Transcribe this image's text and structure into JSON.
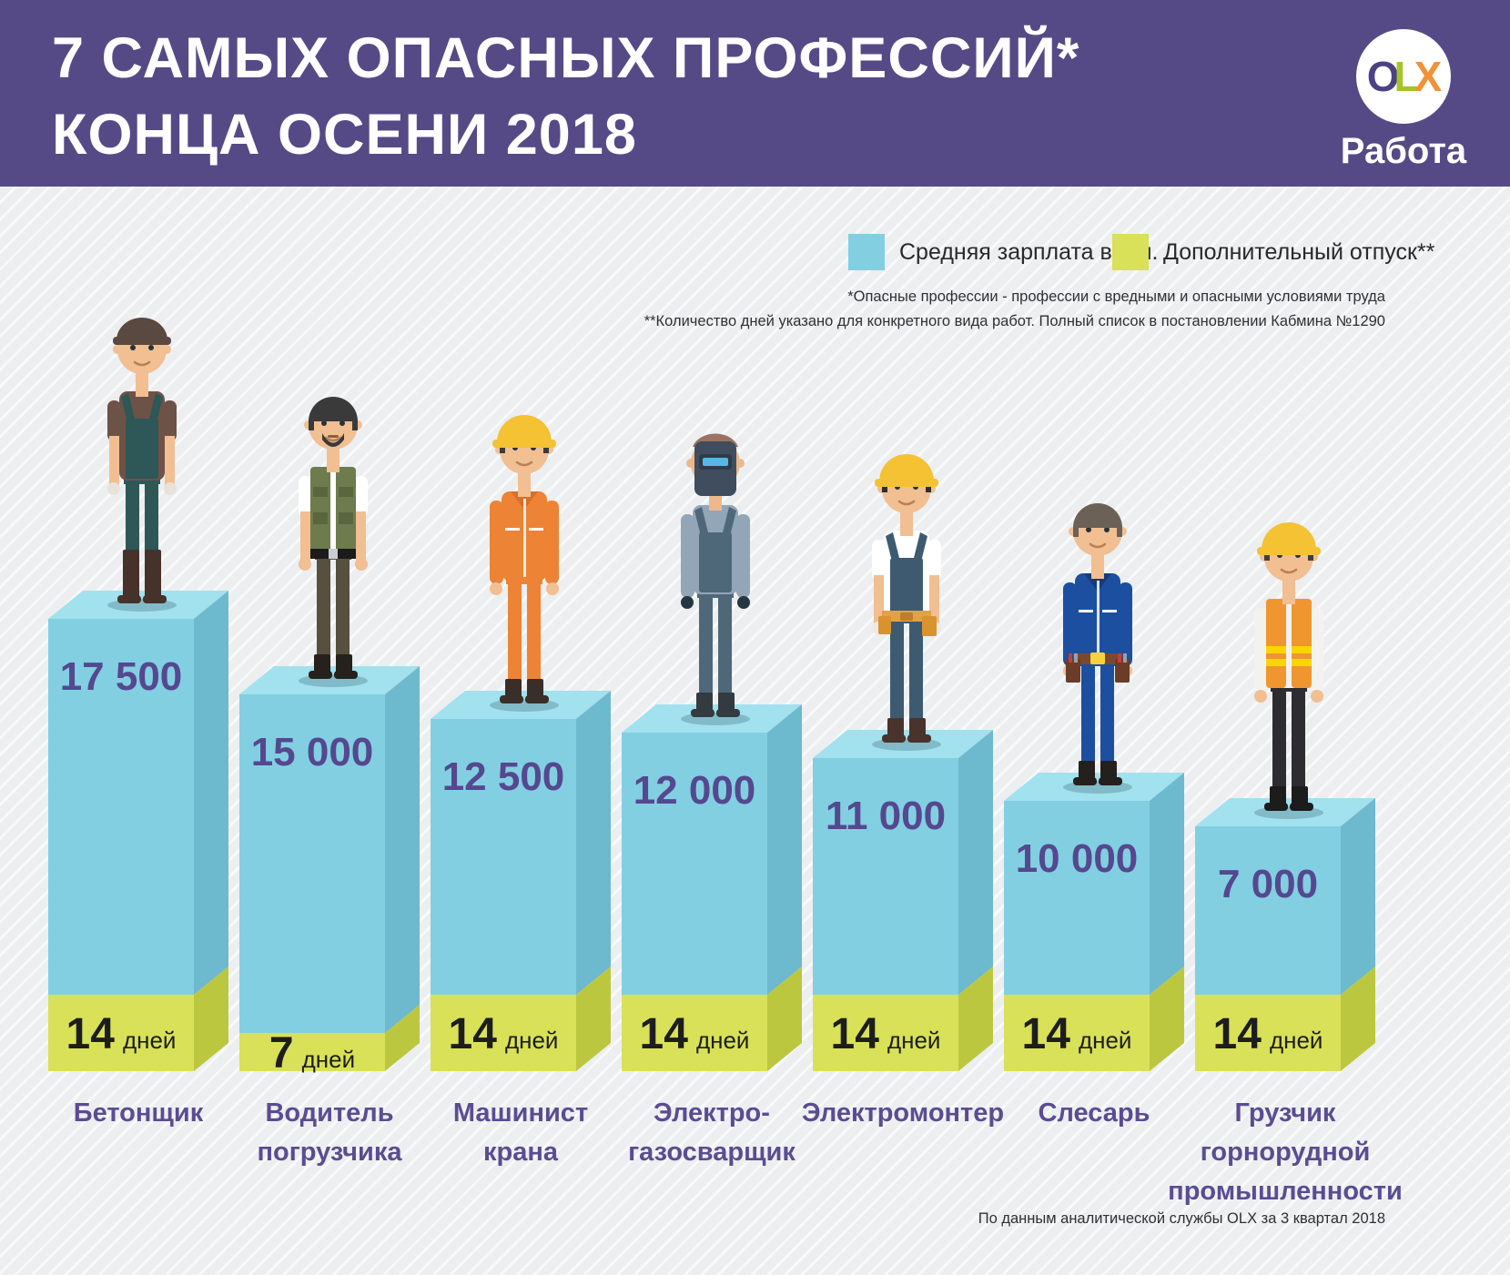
{
  "header": {
    "title_line1": "7 САМЫХ ОПАСНЫХ ПРОФЕССИЙ*",
    "title_line2": "КОНЦА ОСЕНИ 2018",
    "logo": {
      "o": "O",
      "l": "L",
      "x": "X",
      "product": "Работа"
    }
  },
  "legend": [
    {
      "label": "Средняя зарплата в грн.",
      "color": "#82cfe2"
    },
    {
      "label": "Дополнительный отпуск**",
      "color": "#d8e158"
    }
  ],
  "footnotes": [
    "*Опасные профессии - профессии с вредными и опасными условиями труда",
    "**Количество дней указано для конкретного вида работ. Полный список в постановлении Кабмина №1290"
  ],
  "source": "По данным аналитической службы OLX за 3 квартал 2018",
  "days_word": "дней",
  "chart_data": {
    "type": "bar",
    "categories": [
      "Бетонщик",
      "Водитель погрузчика",
      "Машинист крана",
      "Электро-газосварщик",
      "Электромонтер",
      "Слесарь",
      "Грузчик горнорудной промышленности"
    ],
    "series": [
      {
        "name": "Средняя зарплата в грн.",
        "values": [
          17500,
          15000,
          12500,
          12000,
          11000,
          10000,
          7000
        ]
      },
      {
        "name": "Дополнительный отпуск, дней",
        "values": [
          14,
          7,
          14,
          14,
          14,
          14,
          14
        ]
      }
    ],
    "title": "7 самых опасных профессий конца осени 2018",
    "legend_position": "top-right",
    "grid": false
  },
  "colors": {
    "bar_front_blue": "#82cfe2",
    "bar_side_blue": "#6db9cd",
    "bar_top_blue": "#a2e1ee",
    "bar_front_green": "#d8e158",
    "bar_side_green": "#bcc740",
    "value_text": "#55488f",
    "days_text": "#1d1d1d",
    "label_text": "#5b4c92",
    "header_bg": "#564a86"
  },
  "bars": [
    {
      "id": "concrete-worker",
      "value_label": "17 500",
      "days": 14,
      "label_lines": [
        "Бетонщик"
      ],
      "worker": {
        "skin": "#f1bf92",
        "hair": "#4a3a33",
        "hat": {
          "type": "cap",
          "color": "#5a4940"
        },
        "top": {
          "color": "#6d5247",
          "sleeves": "short"
        },
        "overlay": {
          "type": "bib",
          "color": "#2e5757"
        },
        "pants": "#2e5757",
        "boots": "#46312b",
        "boot_tall": true,
        "hand": "#e8e2da"
      }
    },
    {
      "id": "forklift-driver",
      "value_label": "15 000",
      "days": 7,
      "label_lines": [
        "Водитель",
        "погрузчика"
      ],
      "worker": {
        "skin": "#f1bf92",
        "hair": "#3a3a3a",
        "beard": true,
        "hat": {
          "type": "hair",
          "color": "#3a3a3a"
        },
        "top": {
          "color": "#ffffff",
          "sleeves": "short"
        },
        "overlay": {
          "type": "vest",
          "color": "#6e7c4d",
          "pocket": "#59663e"
        },
        "pants": "#56503f",
        "boots": "#26211d",
        "belt": {
          "type": "plain",
          "color": "#1b1b1b",
          "buckle": "#c9ccd1"
        },
        "hand": "#f1bf92"
      }
    },
    {
      "id": "crane-operator",
      "value_label": "12 500",
      "days": 14,
      "label_lines": [
        "Машинист",
        "крана"
      ],
      "worker": {
        "skin": "#f1bf92",
        "hair": "#3a3a3a",
        "hat": {
          "type": "hardhat",
          "color": "#f4c232"
        },
        "top": {
          "color": "#ed8334",
          "sleeves": "long",
          "coverall": true,
          "collar": "#d96f28"
        },
        "pants": "#ed8334",
        "boots": "#3a2e29",
        "hand": "#f1bf92"
      }
    },
    {
      "id": "welder",
      "value_label": "12 000",
      "days": 14,
      "label_lines": [
        "Электро-",
        "газосварщик"
      ],
      "worker": {
        "skin": "#edb88c",
        "hair": "#9b7263",
        "hat": {
          "type": "mask",
          "color": "#3f4d5f",
          "shade": "#2f3b4a",
          "visor": "#56b7e6"
        },
        "top": {
          "color": "#92a6b7",
          "sleeves": "long"
        },
        "overlay": {
          "type": "bib",
          "color": "#4f6879"
        },
        "pants": "#4f6879",
        "boots": "#333a40",
        "hand": "#243642"
      }
    },
    {
      "id": "electrician",
      "value_label": "11 000",
      "days": 14,
      "label_lines": [
        "Электромонтер"
      ],
      "worker": {
        "skin": "#f1bf92",
        "hair": "#2e2e2e",
        "hat": {
          "type": "hardhat",
          "color": "#f4c232"
        },
        "top": {
          "color": "#ffffff",
          "sleeves": "short"
        },
        "overlay": {
          "type": "bib",
          "color": "#3e5a70"
        },
        "pants": "#3e5a70",
        "boots": "#4a332c",
        "belt": {
          "type": "tool-electric",
          "color": "#e2a23f",
          "pouch": "#d8932f",
          "buckle": "#c27c28"
        },
        "hand": "#eceae6"
      }
    },
    {
      "id": "fitter",
      "value_label": "10 000",
      "days": 14,
      "label_lines": [
        "Слесарь"
      ],
      "worker": {
        "skin": "#f1bf92",
        "hair": "#6b6156",
        "hat": {
          "type": "hair",
          "color": "#6b6156"
        },
        "top": {
          "color": "#1c4f9f",
          "sleeves": "long",
          "coverall": true,
          "collar": "#133c7e"
        },
        "pants": "#1c4f9f",
        "boots": "#24201d",
        "belt": {
          "type": "tool-fitter",
          "color": "#7a4930",
          "pouch": "#6b3d28",
          "buckle": "#f6d23c"
        },
        "hand": "#f1bf92"
      }
    },
    {
      "id": "mining-loader",
      "value_label": "7 000",
      "days": 14,
      "label_lines": [
        "Грузчик",
        "горнорудной",
        "промышленности"
      ],
      "worker": {
        "skin": "#f1bf92",
        "hair": "#3f3f3f",
        "hat": {
          "type": "hardhat",
          "color": "#f4c232"
        },
        "top": {
          "color": "#f4f2ef",
          "sleeves": "long"
        },
        "overlay": {
          "type": "hivis",
          "color": "#ef9630",
          "stripe": "#fad500"
        },
        "pants": "#2c2c31",
        "boots": "#1c1c1c",
        "hand": "#f1bf92"
      }
    }
  ]
}
